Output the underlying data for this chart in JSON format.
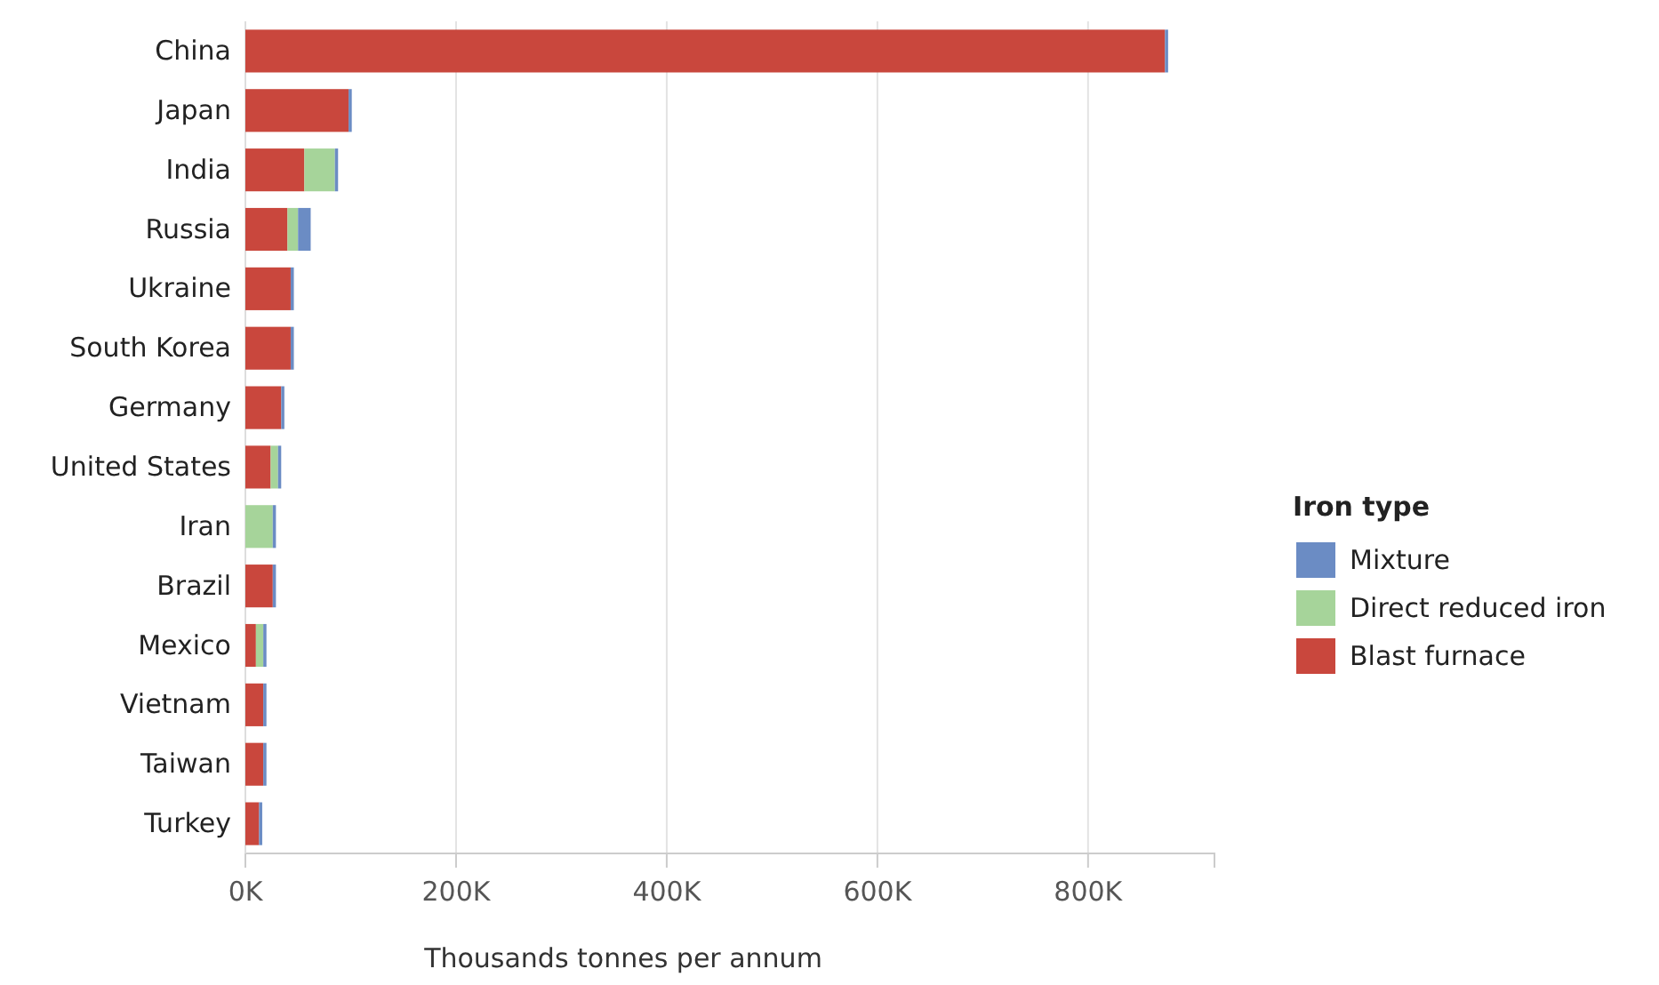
{
  "chart_data": {
    "type": "bar",
    "orientation": "horizontal",
    "stacked": true,
    "xlabel": "Thousands tonnes per annum",
    "legend_title": "Iron type",
    "legend": "right",
    "categories": [
      "China",
      "Japan",
      "India",
      "Russia",
      "Ukraine",
      "South Korea",
      "Germany",
      "United States",
      "Iran",
      "Brazil",
      "Mexico",
      "Vietnam",
      "Taiwan",
      "Turkey"
    ],
    "series": [
      {
        "name": "Blast furnace",
        "color": "#c9473d",
        "values": [
          873000,
          98000,
          56000,
          40000,
          43000,
          43000,
          34000,
          24000,
          0,
          26000,
          10000,
          17000,
          17000,
          13000
        ]
      },
      {
        "name": "Direct reduced iron",
        "color": "#a6d49a",
        "values": [
          0,
          0,
          29000,
          10000,
          0,
          0,
          0,
          7000,
          26000,
          0,
          7000,
          0,
          0,
          0
        ]
      },
      {
        "name": "Mixture",
        "color": "#6b8cc4",
        "values": [
          3000,
          3000,
          3000,
          12000,
          3000,
          3000,
          3000,
          3000,
          3000,
          3000,
          3000,
          3000,
          3000,
          3000
        ]
      }
    ],
    "xlim": [
      0,
      920000
    ],
    "xticks": [
      {
        "value": 0,
        "label": "0K"
      },
      {
        "value": 200000,
        "label": "200K"
      },
      {
        "value": 400000,
        "label": "400K"
      },
      {
        "value": 600000,
        "label": "600K"
      },
      {
        "value": 800000,
        "label": "800K"
      }
    ],
    "grid": "x"
  }
}
